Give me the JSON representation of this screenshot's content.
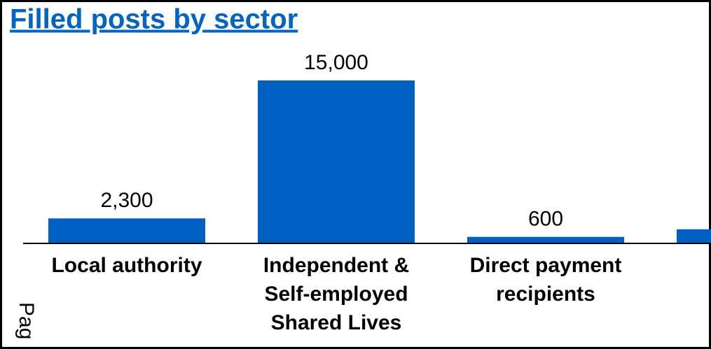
{
  "chart_data": {
    "type": "bar",
    "title": "Filled posts by sector",
    "categories": [
      [
        "Local authority"
      ],
      [
        "Independent &",
        "Self-employed",
        "Shared Lives"
      ],
      [
        "Direct payment",
        "recipients"
      ],
      null
    ],
    "values": [
      2300,
      15000,
      600,
      1300
    ],
    "value_labels": [
      "2,300",
      "15,000",
      "600",
      null
    ],
    "color": "#0061c2",
    "ylim": [
      0,
      15000
    ],
    "annotation": "Pag"
  }
}
